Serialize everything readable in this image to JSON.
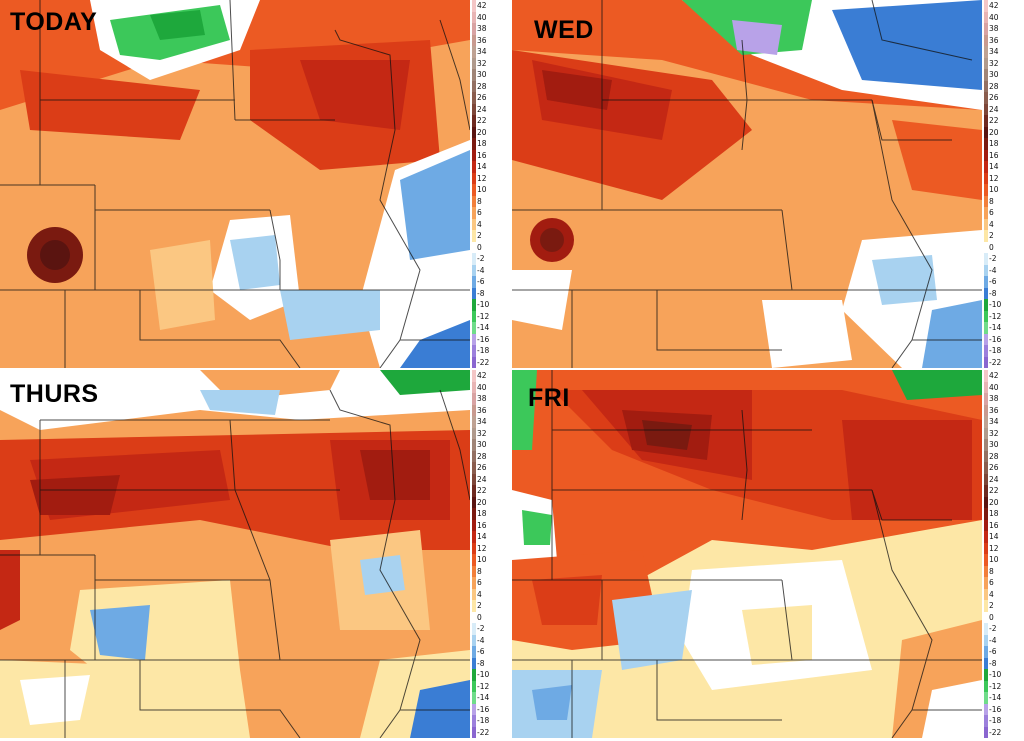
{
  "panels": [
    {
      "id": "today",
      "label": "TODAY",
      "variant": 0
    },
    {
      "id": "wed",
      "label": "WED",
      "variant": 1
    },
    {
      "id": "thurs",
      "label": "THURS",
      "variant": 2
    },
    {
      "id": "fri",
      "label": "FRI",
      "variant": 3
    }
  ],
  "colorbar": {
    "ticks": [
      "42",
      "40",
      "38",
      "36",
      "34",
      "32",
      "30",
      "28",
      "26",
      "24",
      "22",
      "20",
      "18",
      "16",
      "14",
      "12",
      "10",
      "8",
      "6",
      "4",
      "2",
      "0",
      "-2",
      "-4",
      "-6",
      "-8",
      "-10",
      "-12",
      "-14",
      "-16",
      "-18",
      "-22"
    ],
    "colors": [
      "#f4c6c6",
      "#e8b4b4",
      "#d9a3a3",
      "#c99a8f",
      "#bfa293",
      "#b09a8c",
      "#a08577",
      "#937062",
      "#8a5d4e",
      "#7d4638",
      "#6e2a20",
      "#5a1410",
      "#7a1a10",
      "#a21c10",
      "#c42814",
      "#db3d17",
      "#ec5a23",
      "#f27f3a",
      "#f7a35a",
      "#fbc782",
      "#fde7a6",
      "#ffffff",
      "#d8ecf8",
      "#a8d2f0",
      "#6eaae4",
      "#3a7dd4",
      "#1ea83c",
      "#3cc85a",
      "#70dc8a",
      "#b8a2e8",
      "#9c80dc",
      "#8a66d0"
    ]
  },
  "colors": {
    "hot": "#6a140e",
    "warm": "#d9401a",
    "mild": "#f5935a",
    "cool": "#fde6b4",
    "neutral": "#ffffff",
    "cold": "#5a94dc",
    "colder": "#2a9c46"
  }
}
